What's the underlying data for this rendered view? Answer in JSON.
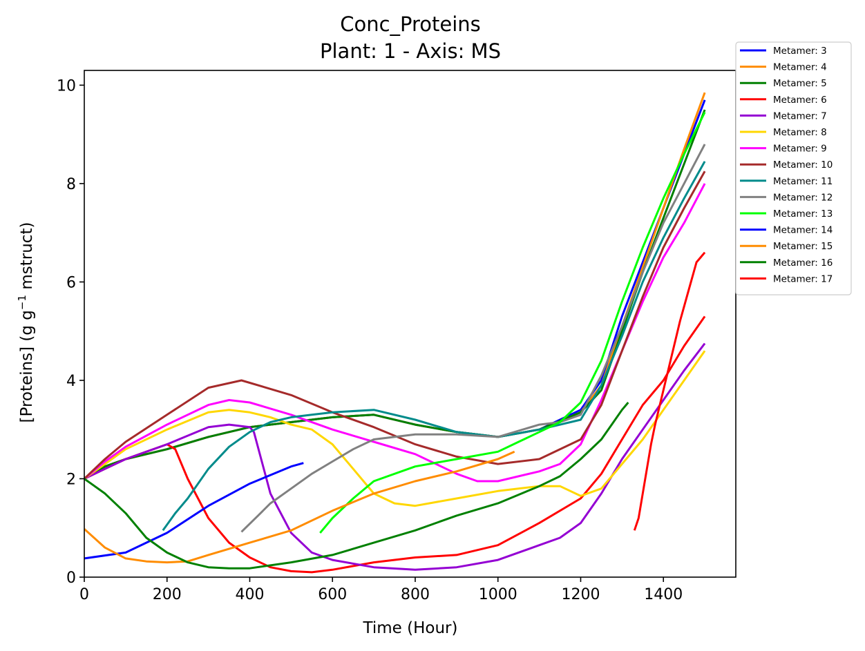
{
  "chart_data": {
    "type": "line",
    "title": "Conc_Proteins",
    "subtitle": "Plant: 1 - Axis: MS",
    "xlabel": "Time (Hour)",
    "ylabel_parts": [
      "[Proteins] (g g",
      "−1",
      " mstruct)"
    ],
    "xlim": [
      0,
      1575
    ],
    "ylim": [
      0,
      10.3
    ],
    "xticks": [
      0,
      200,
      400,
      600,
      800,
      1000,
      1200,
      1400
    ],
    "yticks": [
      0,
      2,
      4,
      6,
      8,
      10
    ],
    "grid": false,
    "legend_position": "upper-right-outside",
    "series": [
      {
        "name": "Metamer: 3",
        "color": "#0000ff",
        "x": [
          0,
          50,
          100,
          200,
          300,
          400,
          500,
          600,
          700,
          800,
          900,
          1000,
          1100,
          1200,
          1250,
          1300,
          1350,
          1400,
          1450,
          1500
        ],
        "y": [
          2.0,
          2.25,
          2.4,
          2.6,
          2.85,
          3.05,
          3.15,
          3.25,
          3.3,
          3.1,
          2.95,
          2.85,
          3.0,
          3.4,
          4.0,
          5.3,
          6.4,
          7.5,
          8.6,
          9.7
        ]
      },
      {
        "name": "Metamer: 4",
        "color": "#ff8c00",
        "x": [
          0,
          50,
          100,
          200,
          300,
          400,
          500,
          600,
          700,
          800,
          900,
          1000,
          1100,
          1200,
          1250,
          1300,
          1350,
          1400,
          1450,
          1500
        ],
        "y": [
          2.0,
          2.25,
          2.4,
          2.6,
          2.85,
          3.05,
          3.15,
          3.25,
          3.3,
          3.1,
          2.95,
          2.85,
          3.0,
          3.35,
          3.9,
          5.1,
          6.3,
          7.5,
          8.7,
          9.85
        ]
      },
      {
        "name": "Metamer: 5",
        "color": "#008000",
        "x": [
          0,
          50,
          100,
          200,
          300,
          400,
          500,
          600,
          700,
          800,
          900,
          1000,
          1100,
          1200,
          1250,
          1300,
          1350,
          1400,
          1450,
          1500
        ],
        "y": [
          2.0,
          2.25,
          2.4,
          2.6,
          2.85,
          3.05,
          3.15,
          3.25,
          3.3,
          3.1,
          2.95,
          2.85,
          3.0,
          3.35,
          3.8,
          5.0,
          6.2,
          7.3,
          8.4,
          9.5
        ]
      },
      {
        "name": "Metamer: 6",
        "color": "#ff0000",
        "x": [
          0,
          50,
          100,
          150,
          200,
          220,
          250,
          300,
          350,
          400,
          450,
          500,
          550,
          600,
          700,
          800,
          900,
          1000,
          1100,
          1200,
          1250,
          1300,
          1350,
          1400,
          1450,
          1500
        ],
        "y": [
          2.0,
          2.2,
          2.4,
          2.55,
          2.7,
          2.6,
          2.0,
          1.2,
          0.7,
          0.4,
          0.2,
          0.12,
          0.1,
          0.15,
          0.3,
          0.4,
          0.45,
          0.65,
          1.1,
          1.6,
          2.1,
          2.8,
          3.5,
          4.0,
          4.7,
          5.3
        ]
      },
      {
        "name": "Metamer: 7",
        "color": "#9400d3",
        "x": [
          0,
          50,
          100,
          200,
          300,
          350,
          400,
          410,
          450,
          500,
          550,
          600,
          700,
          800,
          900,
          1000,
          1100,
          1150,
          1200,
          1250,
          1300,
          1350,
          1400,
          1450,
          1500
        ],
        "y": [
          2.0,
          2.2,
          2.4,
          2.7,
          3.05,
          3.1,
          3.05,
          2.95,
          1.7,
          0.9,
          0.5,
          0.35,
          0.2,
          0.15,
          0.2,
          0.35,
          0.65,
          0.8,
          1.1,
          1.7,
          2.4,
          3.0,
          3.6,
          4.2,
          4.75
        ]
      },
      {
        "name": "Metamer: 8",
        "color": "#ffd700",
        "x": [
          0,
          50,
          100,
          200,
          300,
          350,
          400,
          450,
          500,
          550,
          600,
          650,
          700,
          750,
          800,
          900,
          1000,
          1100,
          1150,
          1200,
          1250,
          1300,
          1350,
          1400,
          1450,
          1500
        ],
        "y": [
          2.0,
          2.3,
          2.6,
          3.0,
          3.35,
          3.4,
          3.35,
          3.25,
          3.1,
          3.0,
          2.7,
          2.2,
          1.7,
          1.5,
          1.45,
          1.6,
          1.75,
          1.85,
          1.85,
          1.65,
          1.8,
          2.3,
          2.8,
          3.4,
          4.0,
          4.6
        ]
      },
      {
        "name": "Metamer: 9",
        "color": "#ff00ff",
        "x": [
          0,
          50,
          100,
          200,
          300,
          350,
          400,
          500,
          600,
          700,
          800,
          900,
          950,
          1000,
          1100,
          1150,
          1200,
          1250,
          1300,
          1350,
          1400,
          1450,
          1500
        ],
        "y": [
          2.0,
          2.35,
          2.65,
          3.1,
          3.5,
          3.6,
          3.55,
          3.3,
          3.0,
          2.75,
          2.5,
          2.1,
          1.95,
          1.95,
          2.15,
          2.3,
          2.7,
          3.6,
          4.6,
          5.6,
          6.5,
          7.2,
          8.0
        ]
      },
      {
        "name": "Metamer: 10",
        "color": "#a52a2a",
        "x": [
          0,
          50,
          100,
          200,
          300,
          380,
          400,
          500,
          600,
          700,
          800,
          900,
          1000,
          1100,
          1200,
          1250,
          1300,
          1350,
          1400,
          1450,
          1500
        ],
        "y": [
          2.0,
          2.4,
          2.75,
          3.3,
          3.85,
          4.0,
          3.95,
          3.7,
          3.35,
          3.05,
          2.7,
          2.45,
          2.3,
          2.4,
          2.8,
          3.5,
          4.6,
          5.7,
          6.7,
          7.5,
          8.25
        ]
      },
      {
        "name": "Metamer: 11",
        "color": "#008b8b",
        "x": [
          190,
          220,
          250,
          300,
          350,
          400,
          450,
          500,
          550,
          600,
          700,
          800,
          900,
          1000,
          1100,
          1200,
          1250,
          1300,
          1350,
          1400,
          1450,
          1500
        ],
        "y": [
          0.95,
          1.3,
          1.6,
          2.2,
          2.65,
          2.95,
          3.15,
          3.25,
          3.3,
          3.35,
          3.4,
          3.2,
          2.95,
          2.85,
          3.0,
          3.2,
          3.9,
          4.9,
          6.0,
          6.9,
          7.7,
          8.45
        ]
      },
      {
        "name": "Metamer: 12",
        "color": "#808080",
        "x": [
          380,
          420,
          450,
          500,
          550,
          600,
          650,
          700,
          800,
          900,
          1000,
          1100,
          1150,
          1200,
          1250,
          1300,
          1350,
          1400,
          1450,
          1500
        ],
        "y": [
          0.92,
          1.25,
          1.5,
          1.8,
          2.1,
          2.35,
          2.6,
          2.8,
          2.9,
          2.9,
          2.85,
          3.1,
          3.15,
          3.3,
          4.1,
          5.1,
          6.2,
          7.2,
          8.0,
          8.8
        ]
      },
      {
        "name": "Metamer: 13",
        "color": "#00ff00",
        "x": [
          570,
          600,
          650,
          700,
          800,
          900,
          1000,
          1050,
          1100,
          1150,
          1200,
          1250,
          1300,
          1350,
          1400,
          1450,
          1500
        ],
        "y": [
          0.9,
          1.2,
          1.6,
          1.95,
          2.25,
          2.4,
          2.55,
          2.75,
          2.95,
          3.15,
          3.55,
          4.4,
          5.6,
          6.7,
          7.7,
          8.6,
          9.45
        ]
      },
      {
        "name": "Metamer: 14",
        "color": "#0000ff",
        "x": [
          0,
          100,
          200,
          300,
          400,
          500,
          530
        ],
        "y": [
          0.38,
          0.5,
          0.9,
          1.45,
          1.9,
          2.25,
          2.32
        ]
      },
      {
        "name": "Metamer: 15",
        "color": "#ff8c00",
        "x": [
          0,
          50,
          100,
          150,
          200,
          250,
          300,
          400,
          500,
          600,
          700,
          800,
          900,
          1000,
          1040
        ],
        "y": [
          0.98,
          0.6,
          0.38,
          0.32,
          0.3,
          0.32,
          0.45,
          0.7,
          0.95,
          1.35,
          1.7,
          1.95,
          2.15,
          2.4,
          2.55
        ]
      },
      {
        "name": "Metamer: 16",
        "color": "#008000",
        "x": [
          0,
          50,
          100,
          150,
          200,
          250,
          300,
          350,
          400,
          500,
          600,
          700,
          800,
          900,
          1000,
          1100,
          1150,
          1200,
          1250,
          1300,
          1315
        ],
        "y": [
          2.0,
          1.7,
          1.3,
          0.8,
          0.5,
          0.3,
          0.2,
          0.18,
          0.18,
          0.3,
          0.45,
          0.7,
          0.95,
          1.25,
          1.5,
          1.85,
          2.05,
          2.4,
          2.8,
          3.4,
          3.55
        ]
      },
      {
        "name": "Metamer: 17",
        "color": "#ff0000",
        "x": [
          1330,
          1340,
          1350,
          1360,
          1370,
          1380,
          1400,
          1420,
          1440,
          1460,
          1480,
          1500
        ],
        "y": [
          0.95,
          1.2,
          1.7,
          2.2,
          2.7,
          3.1,
          3.8,
          4.5,
          5.2,
          5.8,
          6.4,
          6.6
        ]
      }
    ]
  }
}
